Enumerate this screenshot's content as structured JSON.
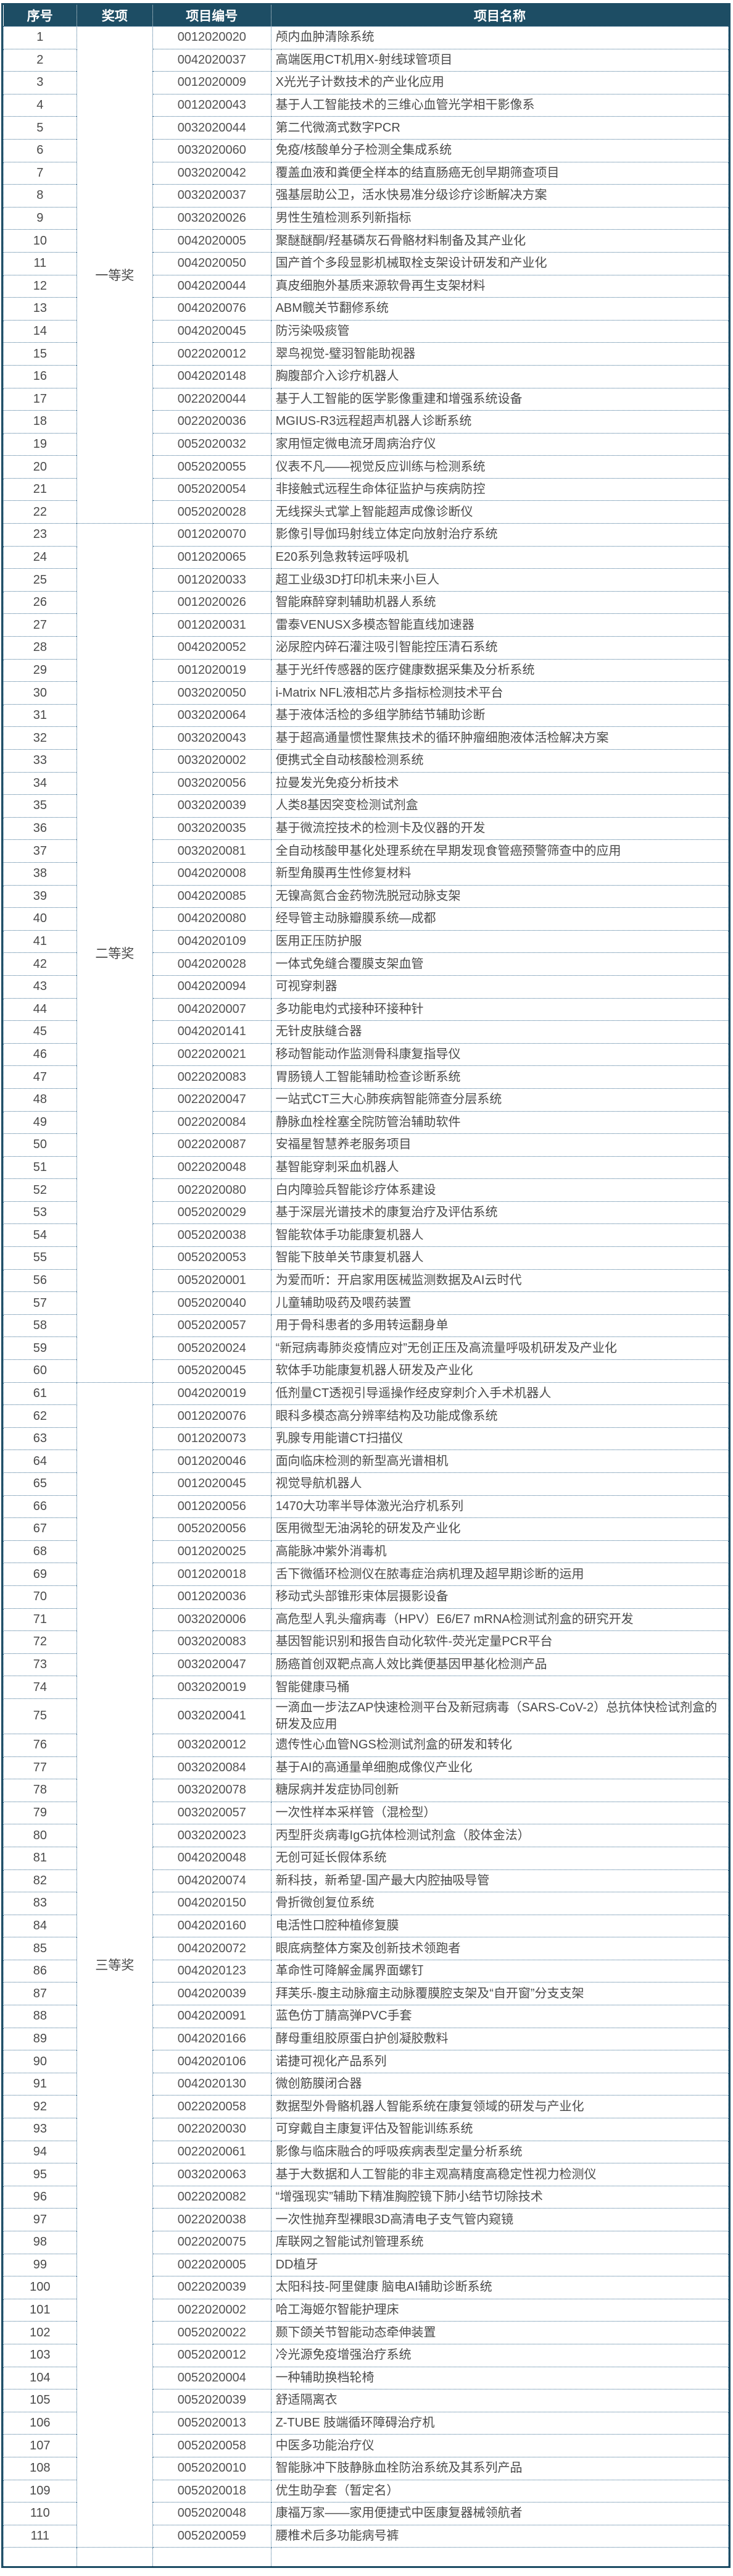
{
  "table": {
    "columns": [
      {
        "key": "no",
        "label": "序号"
      },
      {
        "key": "award",
        "label": "奖项"
      },
      {
        "key": "code",
        "label": "项目编号"
      },
      {
        "key": "name",
        "label": "项目名称"
      }
    ],
    "groups": [
      {
        "award": "一等奖",
        "rows": [
          {
            "no": "1",
            "code": "0012020020",
            "name": "颅内血肿清除系统"
          },
          {
            "no": "2",
            "code": "0042020037",
            "name": "高端医用CT机用X-射线球管项目"
          },
          {
            "no": "3",
            "code": "0012020009",
            "name": "X光光子计数技术的产业化应用"
          },
          {
            "no": "4",
            "code": "0012020043",
            "name": "基于人工智能技术的三维心血管光学相干影像系"
          },
          {
            "no": "5",
            "code": "0032020044",
            "name": "第二代微滴式数字PCR"
          },
          {
            "no": "6",
            "code": "0032020060",
            "name": "免疫/核酸单分子检测全集成系统"
          },
          {
            "no": "7",
            "code": "0032020042",
            "name": "覆盖血液和粪便全样本的结直肠癌无创早期筛查项目"
          },
          {
            "no": "8",
            "code": "0032020037",
            "name": "强基层助公卫，活水快易准分级诊疗诊断解决方案"
          },
          {
            "no": "9",
            "code": "0032020026",
            "name": "男性生殖检测系列新指标"
          },
          {
            "no": "10",
            "code": "0042020005",
            "name": "聚醚醚酮/羟基磷灰石骨骼材料制备及其产业化"
          },
          {
            "no": "11",
            "code": "0042020050",
            "name": "国产首个多段显影机械取栓支架设计研发和产业化"
          },
          {
            "no": "12",
            "code": "0042020044",
            "name": "真皮细胞外基质来源软骨再生支架材料"
          },
          {
            "no": "13",
            "code": "0042020076",
            "name": "ABM髋关节翻修系统"
          },
          {
            "no": "14",
            "code": "0042020045",
            "name": "防污染吸痰管"
          },
          {
            "no": "15",
            "code": "0022020012",
            "name": "翠鸟视觉-璧羽智能助视器"
          },
          {
            "no": "16",
            "code": "0042020148",
            "name": "胸腹部介入诊疗机器人"
          },
          {
            "no": "17",
            "code": "0022020044",
            "name": "基于人工智能的医学影像重建和增强系统设备"
          },
          {
            "no": "18",
            "code": "0022020036",
            "name": "MGIUS-R3远程超声机器人诊断系统"
          },
          {
            "no": "19",
            "code": "0052020032",
            "name": "家用恒定微电流牙周病治疗仪"
          },
          {
            "no": "20",
            "code": "0052020055",
            "name": "仪表不凡——视觉反应训练与检测系统"
          },
          {
            "no": "21",
            "code": "0052020054",
            "name": "非接触式远程生命体征监护与疾病防控"
          },
          {
            "no": "22",
            "code": "0052020028",
            "name": "无线探头式掌上智能超声成像诊断仪"
          }
        ]
      },
      {
        "award": "二等奖",
        "rows": [
          {
            "no": "23",
            "code": "0012020070",
            "name": "影像引导伽玛射线立体定向放射治疗系统"
          },
          {
            "no": "24",
            "code": "0012020065",
            "name": "E20系列急救转运呼吸机"
          },
          {
            "no": "25",
            "code": "0012020033",
            "name": "超工业级3D打印机未来小巨人"
          },
          {
            "no": "26",
            "code": "0012020026",
            "name": "智能麻醉穿刺辅助机器人系统"
          },
          {
            "no": "27",
            "code": "0012020031",
            "name": "雷泰VENUSX多模态智能直线加速器"
          },
          {
            "no": "28",
            "code": "0042020052",
            "name": "泌尿腔内碎石灌注吸引智能控压清石系统"
          },
          {
            "no": "29",
            "code": "0012020019",
            "name": "基于光纤传感器的医疗健康数据采集及分析系统"
          },
          {
            "no": "30",
            "code": "0032020050",
            "name": "i-Matrix NFL液相芯片多指标检测技术平台"
          },
          {
            "no": "31",
            "code": "0032020064",
            "name": "基于液体活检的多组学肺结节辅助诊断"
          },
          {
            "no": "32",
            "code": "0032020043",
            "name": "基于超高通量惯性聚焦技术的循环肿瘤细胞液体活检解决方案"
          },
          {
            "no": "33",
            "code": "0032020002",
            "name": "便携式全自动核酸检测系统"
          },
          {
            "no": "34",
            "code": "0032020056",
            "name": "拉曼发光免疫分析技术"
          },
          {
            "no": "35",
            "code": "0032020039",
            "name": "人类8基因突变检测试剂盒"
          },
          {
            "no": "36",
            "code": "0032020035",
            "name": "基于微流控技术的检测卡及仪器的开发"
          },
          {
            "no": "37",
            "code": "0032020081",
            "name": "全自动核酸甲基化处理系统在早期发现食管癌预警筛查中的应用"
          },
          {
            "no": "38",
            "code": "0042020008",
            "name": "新型角膜再生性修复材料"
          },
          {
            "no": "39",
            "code": "0042020085",
            "name": "无镍高氮合金药物洗脱冠动脉支架"
          },
          {
            "no": "40",
            "code": "0042020080",
            "name": "经导管主动脉瓣膜系统—成都"
          },
          {
            "no": "41",
            "code": "0042020109",
            "name": "医用正压防护服"
          },
          {
            "no": "42",
            "code": "0042020028",
            "name": "一体式免缝合覆膜支架血管"
          },
          {
            "no": "43",
            "code": "0042020094",
            "name": "可视穿刺器"
          },
          {
            "no": "44",
            "code": "0042020007",
            "name": "多功能电灼式接种环接种针"
          },
          {
            "no": "45",
            "code": "0042020141",
            "name": "无针皮肤缝合器"
          },
          {
            "no": "46",
            "code": "0022020021",
            "name": "移动智能动作监测骨科康复指导仪"
          },
          {
            "no": "47",
            "code": "0022020083",
            "name": "胃肠镜人工智能辅助检查诊断系统"
          },
          {
            "no": "48",
            "code": "0022020047",
            "name": "一站式CT三大心肺疾病智能筛查分层系统"
          },
          {
            "no": "49",
            "code": "0022020084",
            "name": "静脉血栓栓塞全院防管治辅助软件"
          },
          {
            "no": "50",
            "code": "0022020087",
            "name": "安福星智慧养老服务项目"
          },
          {
            "no": "51",
            "code": "0022020048",
            "name": "基智能穿刺采血机器人"
          },
          {
            "no": "52",
            "code": "0022020080",
            "name": "白内障验兵智能诊疗体系建设"
          },
          {
            "no": "53",
            "code": "0052020029",
            "name": "基于深层光谱技术的康复治疗及评估系统"
          },
          {
            "no": "54",
            "code": "0052020038",
            "name": "智能软体手功能康复机器人"
          },
          {
            "no": "55",
            "code": "0052020053",
            "name": "智能下肢单关节康复机器人"
          },
          {
            "no": "56",
            "code": "0052020001",
            "name": "为爱而听：开启家用医械监测数据及AI云时代"
          },
          {
            "no": "57",
            "code": "0052020040",
            "name": "儿童辅助吸药及喂药装置"
          },
          {
            "no": "58",
            "code": "0052020057",
            "name": "用于骨科患者的多用转运翻身单"
          },
          {
            "no": "59",
            "code": "0052020024",
            "name": "“新冠病毒肺炎疫情应对”无创正压及高流量呼吸机研发及产业化"
          },
          {
            "no": "60",
            "code": "0052020045",
            "name": "软体手功能康复机器人研发及产业化"
          }
        ]
      },
      {
        "award": "三等奖",
        "rows": [
          {
            "no": "61",
            "code": "0042020019",
            "name": "低剂量CT透视引导遥操作经皮穿刺介入手术机器人"
          },
          {
            "no": "62",
            "code": "0012020076",
            "name": "眼科多模态高分辨率结构及功能成像系统"
          },
          {
            "no": "63",
            "code": "0012020073",
            "name": "乳腺专用能谱CT扫描仪"
          },
          {
            "no": "64",
            "code": "0012020046",
            "name": "面向临床检测的新型高光谱相机"
          },
          {
            "no": "65",
            "code": "0012020045",
            "name": "视觉导航机器人"
          },
          {
            "no": "66",
            "code": "0012020056",
            "name": "1470大功率半导体激光治疗机系列"
          },
          {
            "no": "67",
            "code": "0052020056",
            "name": "医用微型无油涡轮的研发及产业化"
          },
          {
            "no": "68",
            "code": "0012020025",
            "name": "高能脉冲紫外消毒机"
          },
          {
            "no": "69",
            "code": "0012020018",
            "name": "舌下微循环检测仪在脓毒症治病机理及超早期诊断的运用"
          },
          {
            "no": "70",
            "code": "0012020036",
            "name": "移动式头部锥形束体层摄影设备"
          },
          {
            "no": "71",
            "code": "0032020006",
            "name": "高危型人乳头瘤病毒（HPV）E6/E7 mRNA检测试剂盒的研究开发"
          },
          {
            "no": "72",
            "code": "0032020083",
            "name": "基因智能识别和报告自动化软件-荧光定量PCR平台"
          },
          {
            "no": "73",
            "code": "0032020047",
            "name": "肠癌首创双靶点高人效比粪便基因甲基化检测产品"
          },
          {
            "no": "74",
            "code": "0032020019",
            "name": "智能健康马桶"
          },
          {
            "no": "75",
            "code": "0032020041",
            "name": "一滴血一步法ZAP快速检测平台及新冠病毒（SARS-CoV-2）总抗体快检试剂盒的研发及应用"
          },
          {
            "no": "76",
            "code": "0032020012",
            "name": "遗传性心血管NGS检测试剂盒的研发和转化"
          },
          {
            "no": "77",
            "code": "0032020084",
            "name": "基于AI的高通量单细胞成像仪产业化"
          },
          {
            "no": "78",
            "code": "0032020078",
            "name": "糖尿病并发症协同创新"
          },
          {
            "no": "79",
            "code": "0032020057",
            "name": "一次性样本采样管（混检型）"
          },
          {
            "no": "80",
            "code": "0032020023",
            "name": "丙型肝炎病毒IgG抗体检测试剂盒（胶体金法）"
          },
          {
            "no": "81",
            "code": "0042020048",
            "name": "无创可延长假体系统"
          },
          {
            "no": "82",
            "code": "0042020074",
            "name": "新科技，新希望-国产最大内腔抽吸导管"
          },
          {
            "no": "83",
            "code": "0042020150",
            "name": "骨折微创复位系统"
          },
          {
            "no": "84",
            "code": "0042020160",
            "name": "电活性口腔种植修复膜"
          },
          {
            "no": "85",
            "code": "0042020072",
            "name": "眼底病整体方案及创新技术领跑者"
          },
          {
            "no": "86",
            "code": "0042020123",
            "name": "革命性可降解金属界面螺钉"
          },
          {
            "no": "87",
            "code": "0042020039",
            "name": "拜芙乐-腹主动脉瘤主动脉覆膜腔支架及“自开窗”分支支架"
          },
          {
            "no": "88",
            "code": "0042020091",
            "name": "蓝色仿丁腈高弹PVC手套"
          },
          {
            "no": "89",
            "code": "0042020166",
            "name": "酵母重组胶原蛋白护创凝胶敷料"
          },
          {
            "no": "90",
            "code": "0042020106",
            "name": "诺捷可视化产品系列"
          },
          {
            "no": "91",
            "code": "0042020130",
            "name": "微创筋膜闭合器"
          },
          {
            "no": "92",
            "code": "0022020058",
            "name": "数据型外骨骼机器人智能系统在康复领域的研发与产业化"
          },
          {
            "no": "93",
            "code": "0022020030",
            "name": "可穿戴自主康复评估及智能训练系统"
          },
          {
            "no": "94",
            "code": "0022020061",
            "name": "影像与临床融合的呼吸疾病表型定量分析系统"
          },
          {
            "no": "95",
            "code": "0032020063",
            "name": "基于大数据和人工智能的非主观高精度高稳定性视力检测仪"
          },
          {
            "no": "96",
            "code": "0022020082",
            "name": "“增强现实”辅助下精准胸腔镜下肺小结节切除技术"
          },
          {
            "no": "97",
            "code": "0022020038",
            "name": "一次性抛弃型裸眼3D高清电子支气管内窥镜"
          },
          {
            "no": "98",
            "code": "0022020075",
            "name": "库联网之智能试剂管理系统"
          },
          {
            "no": "99",
            "code": "0022020005",
            "name": "DD植牙"
          },
          {
            "no": "100",
            "code": "0022020039",
            "name": "太阳科技-阿里健康 脑电AI辅助诊断系统"
          },
          {
            "no": "101",
            "code": "0022020002",
            "name": "哈工海姬尔智能护理床"
          },
          {
            "no": "102",
            "code": "0052020022",
            "name": "颞下颌关节智能动态牵伸装置"
          },
          {
            "no": "103",
            "code": "0052020012",
            "name": "冷光源免疫增强治疗系统"
          },
          {
            "no": "104",
            "code": "0052020004",
            "name": "一种辅助换档轮椅"
          },
          {
            "no": "105",
            "code": "0052020039",
            "name": "舒适隔离衣"
          },
          {
            "no": "106",
            "code": "0052020013",
            "name": "Z-TUBE 肢端循环障碍治疗机"
          },
          {
            "no": "107",
            "code": "0052020058",
            "name": "中医多功能治疗仪"
          },
          {
            "no": "108",
            "code": "0052020010",
            "name": "智能脉冲下肢静脉血栓防治系统及其系列产品"
          },
          {
            "no": "109",
            "code": "0052020018",
            "name": "优生助孕套（暂定名）"
          },
          {
            "no": "110",
            "code": "0052020048",
            "name": "康福万家——家用便捷式中医康复器械领航者"
          },
          {
            "no": "111",
            "code": "0052020059",
            "name": "腰椎术后多功能病号裤"
          }
        ]
      }
    ]
  },
  "colors": {
    "header_bg": "#1d4d64",
    "outer_border": "#1d4d64",
    "dotted_line": "#3d6f93",
    "body_text": "#4a4a4a",
    "header_text": "#ffffff"
  }
}
